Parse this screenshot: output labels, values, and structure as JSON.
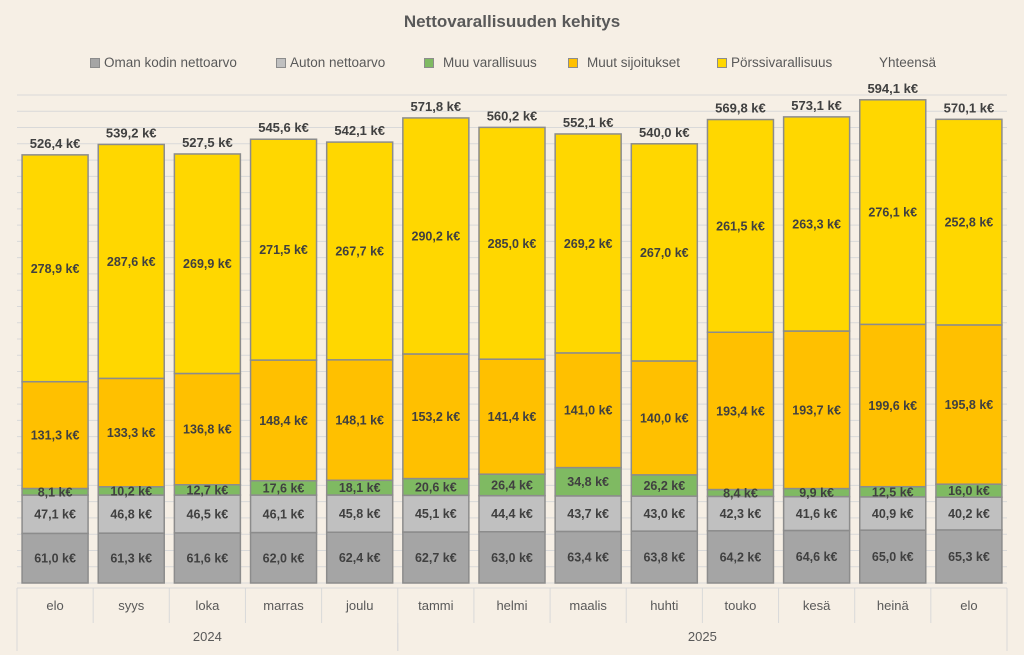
{
  "chart_data": {
    "type": "bar",
    "stacked": true,
    "title": "Nettovarallisuuden kehitys",
    "xlabel": "",
    "ylabel": "",
    "ylim": [
      0,
      600
    ],
    "grid": true,
    "legend_position": "top",
    "unit_suffix": " k€",
    "categories": [
      "elo",
      "syys",
      "loka",
      "marras",
      "joulu",
      "tammi",
      "helmi",
      "maalis",
      "huhti",
      "touko",
      "kesä",
      "heinä",
      "elo"
    ],
    "years": [
      {
        "label": "2024",
        "count": 5
      },
      {
        "label": "2025",
        "count": 8
      }
    ],
    "series": [
      {
        "name": "Oman kodin nettoarvo",
        "color": "#a5a5a5",
        "values": [
          61.0,
          61.3,
          61.6,
          62.0,
          62.4,
          62.7,
          63.0,
          63.4,
          63.8,
          64.2,
          64.6,
          65.0,
          65.3
        ]
      },
      {
        "name": "Auton nettoarvo",
        "color": "#c0c0c0",
        "values": [
          47.1,
          46.8,
          46.5,
          46.1,
          45.8,
          45.1,
          44.4,
          43.7,
          43.0,
          42.3,
          41.6,
          40.9,
          40.2
        ]
      },
      {
        "name": "Muu varallisuus",
        "color": "#7fba62",
        "values": [
          8.1,
          10.2,
          12.7,
          17.6,
          18.1,
          20.6,
          26.4,
          34.8,
          26.2,
          8.4,
          9.9,
          12.5,
          16.0
        ]
      },
      {
        "name": "Muut sijoitukset",
        "color": "#ffc000",
        "values": [
          131.3,
          133.3,
          136.8,
          148.4,
          148.1,
          153.2,
          141.4,
          141.0,
          140.0,
          193.4,
          193.7,
          199.6,
          195.8
        ]
      },
      {
        "name": "Pörssivarallisuus",
        "color": "#ffd700",
        "values": [
          278.9,
          287.6,
          269.9,
          271.5,
          267.7,
          290.2,
          285.0,
          269.2,
          267.0,
          261.5,
          263.3,
          276.1,
          252.8
        ]
      }
    ],
    "totals": {
      "name": "Yhteensä",
      "values": [
        526.4,
        539.2,
        527.5,
        545.6,
        542.1,
        571.8,
        560.2,
        552.1,
        540.0,
        569.8,
        573.1,
        594.1,
        570.1
      ]
    },
    "value_labels": {
      "series": [
        [
          "61,0 k€",
          "61,3 k€",
          "61,6 k€",
          "62,0 k€",
          "62,4 k€",
          "62,7 k€",
          "63,0 k€",
          "63,4 k€",
          "63,8 k€",
          "64,2 k€",
          "64,6 k€",
          "65,0 k€",
          "65,3 k€"
        ],
        [
          "47,1 k€",
          "46,8 k€",
          "46,5 k€",
          "46,1 k€",
          "45,8 k€",
          "45,1 k€",
          "44,4 k€",
          "43,7 k€",
          "43,0 k€",
          "42,3 k€",
          "41,6 k€",
          "40,9 k€",
          "40,2 k€"
        ],
        [
          "8,1 k€",
          "10,2 k€",
          "12,7 k€",
          "17,6 k€",
          "18,1 k€",
          "20,6 k€",
          "26,4 k€",
          "34,8 k€",
          "26,2 k€",
          "8,4 k€",
          "9,9 k€",
          "12,5 k€",
          "16,0 k€"
        ],
        [
          "131,3 k€",
          "133,3 k€",
          "136,8 k€",
          "148,4 k€",
          "148,1 k€",
          "153,2 k€",
          "141,4 k€",
          "141,0 k€",
          "140,0 k€",
          "193,4 k€",
          "193,7 k€",
          "199,6 k€",
          "195,8 k€"
        ],
        [
          "278,9 k€",
          "287,6 k€",
          "269,9 k€",
          "271,5 k€",
          "267,7 k€",
          "290,2 k€",
          "285,0 k€",
          "269,2 k€",
          "267,0 k€",
          "261,5 k€",
          "263,3 k€",
          "276,1 k€",
          "252,8 k€"
        ]
      ],
      "totals": [
        "526,4 k€",
        "539,2 k€",
        "527,5 k€",
        "545,6 k€",
        "542,1 k€",
        "571,8 k€",
        "560,2 k€",
        "552,1 k€",
        "540,0 k€",
        "569,8 k€",
        "573,1 k€",
        "594,1 k€",
        "570,1 k€"
      ]
    }
  }
}
